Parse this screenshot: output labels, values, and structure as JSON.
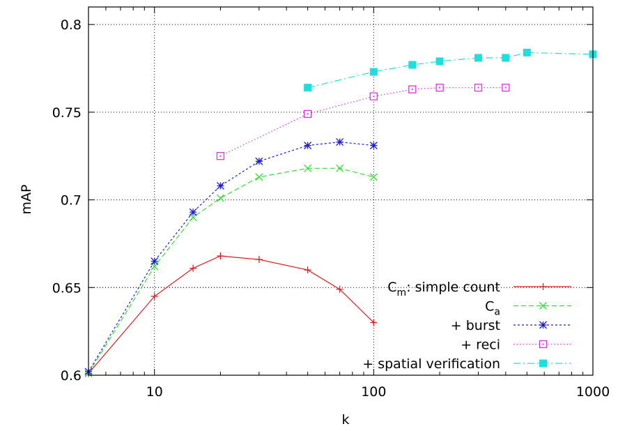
{
  "chart_data": {
    "type": "line",
    "xlabel": "k",
    "ylabel": "mAP",
    "xscale": "log",
    "xlim": [
      5,
      1000
    ],
    "ylim": [
      0.6,
      0.81
    ],
    "xticks": [
      {
        "value": 10,
        "label": "10"
      },
      {
        "value": 100,
        "label": "100"
      },
      {
        "value": 1000,
        "label": "1000"
      }
    ],
    "yticks": [
      {
        "value": 0.6,
        "label": "0.6"
      },
      {
        "value": 0.65,
        "label": "0.65"
      },
      {
        "value": 0.7,
        "label": "0.7"
      },
      {
        "value": 0.75,
        "label": "0.75"
      },
      {
        "value": 0.8,
        "label": "0.8"
      }
    ],
    "grid": true,
    "legend_position": "bottom-right",
    "series": [
      {
        "name": "C",
        "subscript": "m",
        "suffix": ": simple count",
        "color": "#e31a1c",
        "marker": "plus",
        "dash": "",
        "x": [
          5,
          10,
          15,
          20,
          30,
          50,
          70,
          100
        ],
        "y": [
          0.601,
          0.645,
          0.661,
          0.668,
          0.666,
          0.66,
          0.649,
          0.63
        ]
      },
      {
        "name": "C",
        "subscript": "a",
        "suffix": "",
        "color": "#33dd33",
        "marker": "cross",
        "dash": "7,4",
        "x": [
          5,
          10,
          15,
          20,
          30,
          50,
          70,
          100
        ],
        "y": [
          0.601,
          0.662,
          0.69,
          0.701,
          0.713,
          0.718,
          0.718,
          0.713
        ]
      },
      {
        "name": "+ burst",
        "subscript": "",
        "suffix": "",
        "color": "#1a1adf",
        "marker": "star",
        "dash": "3,3",
        "x": [
          5,
          10,
          15,
          20,
          30,
          50,
          70,
          100
        ],
        "y": [
          0.602,
          0.665,
          0.693,
          0.708,
          0.722,
          0.731,
          0.733,
          0.731
        ]
      },
      {
        "name": "+ reci",
        "subscript": "",
        "suffix": "",
        "color": "#dd33dd",
        "marker": "dotted-square",
        "dash": "1.5,3",
        "x": [
          20,
          50,
          100,
          150,
          200,
          300,
          400
        ],
        "y": [
          0.725,
          0.749,
          0.759,
          0.763,
          0.764,
          0.764,
          0.764
        ]
      },
      {
        "name": "+ spatial verification",
        "subscript": "",
        "suffix": "",
        "color": "#22dddd",
        "marker": "filled-square",
        "dash": "10,4,2,4",
        "x": [
          50,
          100,
          150,
          200,
          300,
          400,
          500,
          1000
        ],
        "y": [
          0.764,
          0.773,
          0.777,
          0.779,
          0.781,
          0.781,
          0.784,
          0.783
        ]
      }
    ]
  }
}
